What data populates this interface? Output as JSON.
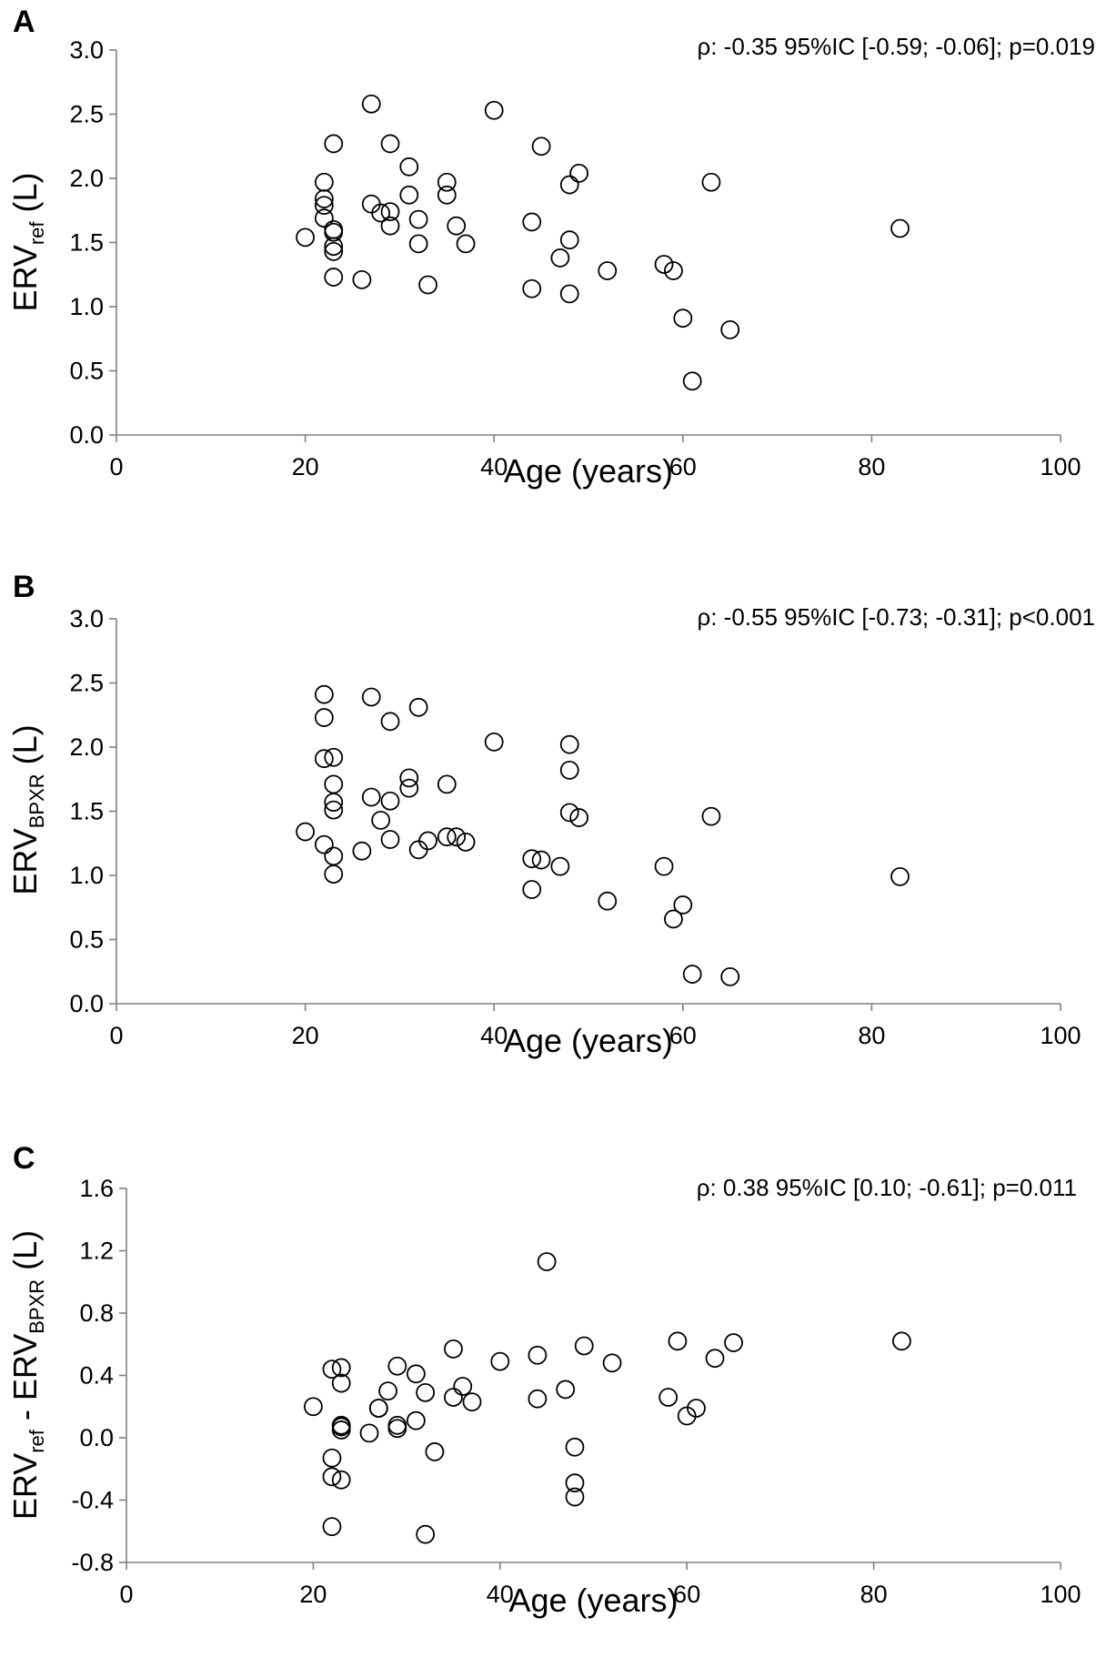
{
  "chart_data": [
    {
      "type": "scatter",
      "panel_label": "A",
      "stat_text": "ρ: -0.35 95%IC [-0.59; -0.06]; p=0.019",
      "xlabel": "Age (years)",
      "ylabel": {
        "main": "ERV",
        "sub": "ref",
        "suffix": " (L)"
      },
      "xlim": [
        0,
        100
      ],
      "ylim": [
        0,
        3
      ],
      "x_ticks": [
        "0",
        "20",
        "40",
        "60",
        "80",
        "100"
      ],
      "y_ticks": [
        "0.0",
        "0.5",
        "1.0",
        "1.5",
        "2.0",
        "2.5",
        "3.0"
      ],
      "points": [
        [
          20,
          1.54
        ],
        [
          22,
          1.97
        ],
        [
          22,
          1.84
        ],
        [
          22,
          1.79
        ],
        [
          22,
          1.69
        ],
        [
          23,
          2.27
        ],
        [
          23,
          1.6
        ],
        [
          23,
          1.58
        ],
        [
          23,
          1.47
        ],
        [
          23,
          1.43
        ],
        [
          23,
          1.23
        ],
        [
          26,
          1.21
        ],
        [
          27,
          2.58
        ],
        [
          27,
          1.8
        ],
        [
          28,
          1.73
        ],
        [
          29,
          2.27
        ],
        [
          29,
          1.74
        ],
        [
          29,
          1.63
        ],
        [
          31,
          2.09
        ],
        [
          31,
          1.87
        ],
        [
          32,
          1.68
        ],
        [
          32,
          1.49
        ],
        [
          33,
          1.17
        ],
        [
          35,
          1.97
        ],
        [
          35,
          1.87
        ],
        [
          36,
          1.63
        ],
        [
          37,
          1.49
        ],
        [
          40,
          2.53
        ],
        [
          44,
          1.66
        ],
        [
          44,
          1.14
        ],
        [
          45,
          2.25
        ],
        [
          47,
          1.38
        ],
        [
          48,
          1.95
        ],
        [
          48,
          1.52
        ],
        [
          48,
          1.1
        ],
        [
          49,
          2.04
        ],
        [
          52,
          1.28
        ],
        [
          58,
          1.33
        ],
        [
          59,
          1.28
        ],
        [
          60,
          0.91
        ],
        [
          61,
          0.42
        ],
        [
          63,
          1.97
        ],
        [
          65,
          0.82
        ],
        [
          83,
          1.61
        ]
      ]
    },
    {
      "type": "scatter",
      "panel_label": "B",
      "stat_text": "ρ: -0.55 95%IC [-0.73; -0.31]; p<0.001",
      "xlabel": "Age (years)",
      "ylabel": {
        "main": "ERV",
        "sub": "BPXR",
        "suffix": " (L)"
      },
      "xlim": [
        0,
        100
      ],
      "ylim": [
        0,
        3
      ],
      "x_ticks": [
        "0",
        "20",
        "40",
        "60",
        "80",
        "100"
      ],
      "y_ticks": [
        "0.0",
        "0.5",
        "1.0",
        "1.5",
        "2.0",
        "2.5",
        "3.0"
      ],
      "points": [
        [
          20,
          1.34
        ],
        [
          22,
          2.41
        ],
        [
          22,
          2.23
        ],
        [
          22,
          1.91
        ],
        [
          22,
          1.24
        ],
        [
          23,
          1.92
        ],
        [
          23,
          1.71
        ],
        [
          23,
          1.57
        ],
        [
          23,
          1.51
        ],
        [
          23,
          1.15
        ],
        [
          23,
          1.01
        ],
        [
          26,
          1.19
        ],
        [
          27,
          2.39
        ],
        [
          27,
          1.61
        ],
        [
          28,
          1.43
        ],
        [
          29,
          2.2
        ],
        [
          29,
          1.58
        ],
        [
          29,
          1.28
        ],
        [
          31,
          1.76
        ],
        [
          31,
          1.68
        ],
        [
          32,
          2.31
        ],
        [
          32,
          1.2
        ],
        [
          33,
          1.27
        ],
        [
          35,
          1.71
        ],
        [
          35,
          1.3
        ],
        [
          36,
          1.3
        ],
        [
          37,
          1.26
        ],
        [
          40,
          2.04
        ],
        [
          44,
          1.13
        ],
        [
          44,
          0.89
        ],
        [
          45,
          1.12
        ],
        [
          47,
          1.07
        ],
        [
          48,
          2.02
        ],
        [
          48,
          1.82
        ],
        [
          48,
          1.49
        ],
        [
          49,
          1.45
        ],
        [
          52,
          0.8
        ],
        [
          58,
          1.07
        ],
        [
          59,
          0.66
        ],
        [
          60,
          0.77
        ],
        [
          61,
          0.23
        ],
        [
          63,
          1.46
        ],
        [
          65,
          0.21
        ],
        [
          83,
          0.99
        ]
      ]
    },
    {
      "type": "scatter",
      "panel_label": "C",
      "stat_text": "ρ: 0.38 95%IC [0.10; -0.61]; p=0.011",
      "xlabel": "Age (years)",
      "ylabel": {
        "main": "ERV",
        "sub": "ref",
        "mid": " - ERV",
        "sub2": "BPXR",
        "suffix": " (L)"
      },
      "xlim": [
        0,
        100
      ],
      "ylim": [
        -0.8,
        1.6
      ],
      "x_ticks": [
        "0",
        "20",
        "40",
        "60",
        "80",
        "100"
      ],
      "y_ticks": [
        "-0.8",
        "-0.4",
        "0.0",
        "0.4",
        "0.8",
        "1.2",
        "1.6"
      ],
      "points": [
        [
          20,
          0.2
        ],
        [
          22,
          0.44
        ],
        [
          22,
          -0.13
        ],
        [
          22,
          -0.25
        ],
        [
          22,
          -0.57
        ],
        [
          23,
          0.45
        ],
        [
          23,
          0.35
        ],
        [
          23,
          0.08
        ],
        [
          23,
          0.07
        ],
        [
          23,
          0.05
        ],
        [
          23,
          -0.27
        ],
        [
          26,
          0.03
        ],
        [
          27,
          0.19
        ],
        [
          27,
          0.19
        ],
        [
          28,
          0.3
        ],
        [
          29,
          0.46
        ],
        [
          29,
          0.08
        ],
        [
          29,
          0.06
        ],
        [
          31,
          0.41
        ],
        [
          31,
          0.11
        ],
        [
          32,
          0.29
        ],
        [
          32,
          -0.62
        ],
        [
          33,
          -0.09
        ],
        [
          35,
          0.57
        ],
        [
          35,
          0.26
        ],
        [
          36,
          0.33
        ],
        [
          37,
          0.23
        ],
        [
          40,
          0.49
        ],
        [
          44,
          0.53
        ],
        [
          44,
          0.25
        ],
        [
          45,
          1.13
        ],
        [
          47,
          0.31
        ],
        [
          48,
          -0.06
        ],
        [
          48,
          -0.29
        ],
        [
          48,
          -0.38
        ],
        [
          49,
          0.59
        ],
        [
          52,
          0.48
        ],
        [
          58,
          0.26
        ],
        [
          59,
          0.62
        ],
        [
          60,
          0.14
        ],
        [
          61,
          0.19
        ],
        [
          63,
          0.51
        ],
        [
          65,
          0.61
        ],
        [
          83,
          0.62
        ]
      ]
    }
  ]
}
